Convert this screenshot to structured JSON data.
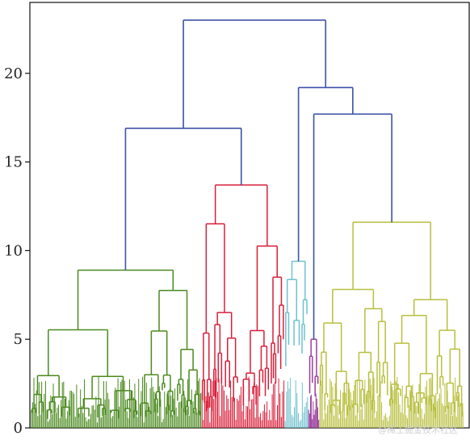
{
  "chart_data": {
    "type": "dendrogram",
    "ylim": [
      0,
      24
    ],
    "y_ticks": [
      0,
      5,
      10,
      15,
      20
    ],
    "y_tick_labels": [
      "0",
      "5",
      "10",
      "15",
      "20"
    ],
    "x_tick_labels": [],
    "grid": false,
    "legend": "none",
    "clusters": [
      {
        "id": "green",
        "color": "#4b8a1f",
        "leaf_share": 0.39,
        "top_height": 8.9
      },
      {
        "id": "red",
        "color": "#d81f3a",
        "leaf_share": 0.19,
        "top_height": 13.7
      },
      {
        "id": "cyan",
        "color": "#6ec1cf",
        "leaf_share": 0.054,
        "top_height": 9.4
      },
      {
        "id": "purple",
        "color": "#9b3f9e",
        "leaf_share": 0.025,
        "top_height": 5.0
      },
      {
        "id": "olive",
        "color": "#b8bf3d",
        "leaf_share": 0.33,
        "top_height": 11.6
      }
    ],
    "merges": [
      {
        "left": "green",
        "right": "red",
        "height": 16.9,
        "color": "#3d52a8"
      },
      {
        "left": "purple",
        "right": "olive",
        "height": 17.7,
        "color": "#3d52a8"
      },
      {
        "left": "cyan",
        "right": "purple+olive",
        "height": 19.2,
        "color": "#3d52a8"
      },
      {
        "left": "green+red",
        "right": "cyan+purple+olive",
        "height": 23.0,
        "color": "#3d52a8"
      }
    ],
    "link_color": "#3d52a8"
  },
  "watermark": "@稀土掘金技术社区"
}
